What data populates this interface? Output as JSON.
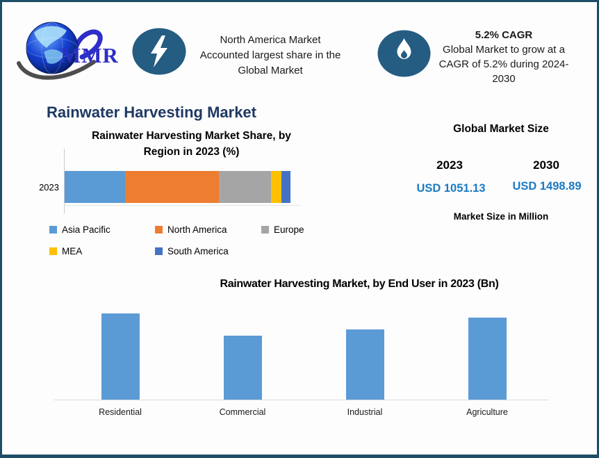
{
  "brand": {
    "logo_text": "MMR"
  },
  "header": {
    "card1": {
      "icon": "lightning-icon",
      "lines": [
        "North America Market",
        "Accounted largest share in the",
        "Global Market"
      ]
    },
    "card2": {
      "icon": "flame-icon",
      "title": "5.2% CAGR",
      "lines": [
        "Global Market to grow at a",
        "CAGR of 5.2% during 2024-",
        "2030"
      ]
    }
  },
  "main_title": "Rainwater Harvesting Market",
  "market_size": {
    "title": "Global Market Size",
    "years": [
      "2023",
      "2030"
    ],
    "values": [
      "USD 1051.13",
      "USD 1498.89"
    ],
    "note": "Market Size in Million",
    "value_color": "#1b7ac2"
  },
  "colors": {
    "frame_border": "#1e4e66",
    "main_title": "#1f3864",
    "icon_ellipse": "#255c82",
    "bar_blue": "#5B9BD5"
  },
  "chart_data": [
    {
      "type": "bar",
      "subtype": "horizontal-stacked",
      "title": "Rainwater Harvesting Market Share, by Region in 2023 (%)",
      "title_lines": [
        "Rainwater Harvesting Market Share, by",
        "Region in 2023 (%)"
      ],
      "categories": [
        "2023"
      ],
      "series": [
        {
          "name": "Asia Pacific",
          "color": "#5B9BD5",
          "values": [
            26.8
          ]
        },
        {
          "name": "North America",
          "color": "#ED7D31",
          "values": [
            41.5
          ]
        },
        {
          "name": "Europe",
          "color": "#A5A5A5",
          "values": [
            23.1
          ]
        },
        {
          "name": "MEA",
          "color": "#FFC000",
          "values": [
            4.6
          ]
        },
        {
          "name": "South America",
          "color": "#4472C4",
          "values": [
            4.0
          ]
        }
      ],
      "xlim": [
        0,
        100
      ],
      "grid": false,
      "legend_position": "bottom"
    },
    {
      "type": "bar",
      "title": "Rainwater Harvesting Market, by End User in 2023 (Bn)",
      "categories": [
        "Residential",
        "Commercial",
        "Industrial",
        "Agriculture"
      ],
      "values": [
        1.24,
        0.92,
        1.01,
        1.18
      ],
      "bar_color": "#5B9BD5",
      "xlabel": "",
      "ylabel": "",
      "ylim": [
        0,
        1.4
      ],
      "grid": false,
      "note": "values estimated from bar heights; axis unlabeled in source"
    }
  ]
}
